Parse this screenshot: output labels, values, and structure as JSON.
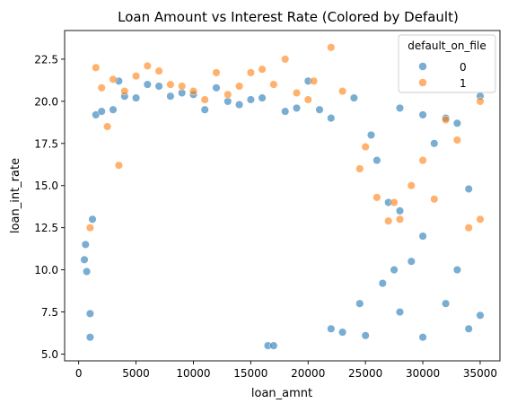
{
  "chart_data": {
    "type": "scatter",
    "title": "Loan Amount vs Interest Rate (Colored by Default)",
    "xlabel": "loan_amnt",
    "ylabel": "loan_int_rate",
    "xlim": [
      -1225,
      36725
    ],
    "ylim": [
      4.6,
      24.2
    ],
    "xticks": [
      0,
      5000,
      10000,
      15000,
      20000,
      25000,
      30000,
      35000
    ],
    "xtick_labels": [
      "0",
      "5000",
      "10000",
      "15000",
      "20000",
      "25000",
      "30000",
      "35000"
    ],
    "yticks": [
      5.0,
      7.5,
      10.0,
      12.5,
      15.0,
      17.5,
      20.0,
      22.5
    ],
    "ytick_labels": [
      "5.0",
      "7.5",
      "10.0",
      "12.5",
      "15.0",
      "17.5",
      "20.0",
      "22.5"
    ],
    "grid": false,
    "legend": {
      "title": "default_on_file",
      "placement": "top-right"
    },
    "series": [
      {
        "name": "0",
        "color": "#1f77b4",
        "points": [
          [
            500,
            10.6
          ],
          [
            600,
            11.5
          ],
          [
            700,
            9.9
          ],
          [
            1000,
            7.4
          ],
          [
            1000,
            6.0
          ],
          [
            1200,
            13.0
          ],
          [
            1500,
            19.2
          ],
          [
            2000,
            19.4
          ],
          [
            3000,
            19.5
          ],
          [
            3500,
            21.2
          ],
          [
            4000,
            20.3
          ],
          [
            5000,
            20.2
          ],
          [
            6000,
            21.0
          ],
          [
            7000,
            20.9
          ],
          [
            8000,
            20.3
          ],
          [
            9000,
            20.5
          ],
          [
            10000,
            20.4
          ],
          [
            11000,
            19.5
          ],
          [
            12000,
            20.8
          ],
          [
            13000,
            20.0
          ],
          [
            14000,
            19.8
          ],
          [
            15000,
            20.1
          ],
          [
            16000,
            20.2
          ],
          [
            16500,
            5.5
          ],
          [
            17000,
            5.5
          ],
          [
            18000,
            19.4
          ],
          [
            19000,
            19.6
          ],
          [
            20000,
            21.2
          ],
          [
            21000,
            19.5
          ],
          [
            22000,
            19.0
          ],
          [
            24000,
            20.2
          ],
          [
            25000,
            6.1
          ],
          [
            26000,
            16.5
          ],
          [
            27000,
            14.0
          ],
          [
            27500,
            10.0
          ],
          [
            28000,
            7.5
          ],
          [
            28000,
            19.6
          ],
          [
            29000,
            10.5
          ],
          [
            30000,
            19.2
          ],
          [
            30000,
            6.0
          ],
          [
            31000,
            17.5
          ],
          [
            32000,
            8.0
          ],
          [
            32000,
            19.0
          ],
          [
            33000,
            10.0
          ],
          [
            33000,
            18.7
          ],
          [
            34000,
            6.5
          ],
          [
            34000,
            14.8
          ],
          [
            35000,
            20.3
          ],
          [
            35000,
            7.3
          ],
          [
            25500,
            18.0
          ],
          [
            24500,
            8.0
          ],
          [
            23000,
            6.3
          ],
          [
            22000,
            6.5
          ],
          [
            30000,
            12.0
          ],
          [
            28000,
            13.5
          ],
          [
            26500,
            9.2
          ]
        ]
      },
      {
        "name": "1",
        "color": "#ff7f0e",
        "points": [
          [
            1500,
            22.0
          ],
          [
            2000,
            20.8
          ],
          [
            3000,
            21.3
          ],
          [
            4000,
            20.6
          ],
          [
            5000,
            21.5
          ],
          [
            6000,
            22.1
          ],
          [
            7000,
            21.8
          ],
          [
            8000,
            21.0
          ],
          [
            9000,
            20.9
          ],
          [
            10000,
            20.6
          ],
          [
            11000,
            20.1
          ],
          [
            12000,
            21.7
          ],
          [
            13000,
            20.4
          ],
          [
            14000,
            20.9
          ],
          [
            16000,
            21.9
          ],
          [
            18000,
            22.5
          ],
          [
            20000,
            20.1
          ],
          [
            22000,
            23.2
          ],
          [
            23000,
            20.6
          ],
          [
            25000,
            17.3
          ],
          [
            26000,
            14.3
          ],
          [
            27000,
            12.9
          ],
          [
            28000,
            13.0
          ],
          [
            29000,
            15.0
          ],
          [
            30000,
            16.5
          ],
          [
            31000,
            14.2
          ],
          [
            32000,
            18.9
          ],
          [
            33000,
            17.7
          ],
          [
            34000,
            12.5
          ],
          [
            35000,
            20.0
          ],
          [
            35000,
            13.0
          ],
          [
            1000,
            12.5
          ],
          [
            2500,
            18.5
          ],
          [
            3500,
            16.2
          ],
          [
            20500,
            21.2
          ],
          [
            19000,
            20.5
          ],
          [
            24500,
            16.0
          ],
          [
            17000,
            21.0
          ],
          [
            15000,
            21.7
          ],
          [
            27500,
            14.0
          ]
        ]
      }
    ]
  }
}
